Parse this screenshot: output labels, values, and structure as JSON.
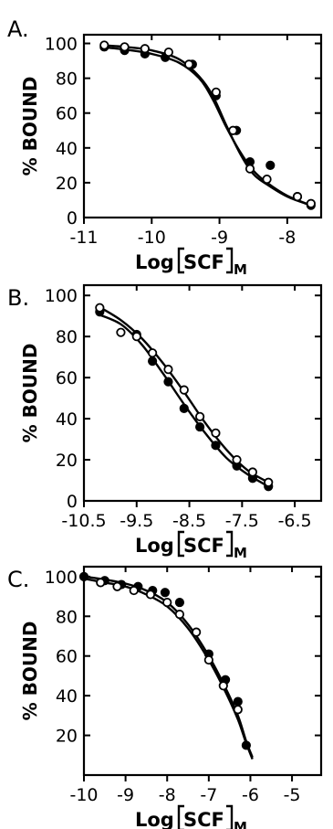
{
  "chart_data": [
    {
      "panel_label": "A.",
      "type": "line",
      "ylabel": "% BOUND",
      "xlabel_main": "Log",
      "xlabel_bracket": "SCF",
      "xlabel_sub": "M",
      "xlim": [
        -11,
        -7.5
      ],
      "ylim": [
        0,
        105
      ],
      "x_ticks": [
        -11,
        -10,
        -9,
        -8
      ],
      "x_tick_labels": [
        "-11",
        "-10",
        "-9",
        "-8"
      ],
      "y_ticks": [
        0,
        20,
        40,
        60,
        80,
        100
      ],
      "y_tick_labels": [
        "0",
        "20",
        "40",
        "60",
        "80",
        "100"
      ],
      "series": [
        {
          "marker": "filled",
          "points": [
            [
              -10.7,
              98
            ],
            [
              -10.4,
              96
            ],
            [
              -10.1,
              94
            ],
            [
              -9.8,
              92
            ],
            [
              -9.4,
              88
            ],
            [
              -9.05,
              70
            ],
            [
              -8.75,
              50
            ],
            [
              -8.55,
              32
            ],
            [
              -8.25,
              30
            ],
            [
              -7.85,
              12
            ],
            [
              -7.65,
              7
            ]
          ],
          "curve": [
            [
              -10.75,
              98
            ],
            [
              -10.4,
              96.5
            ],
            [
              -10.0,
              94
            ],
            [
              -9.6,
              89
            ],
            [
              -9.3,
              80
            ],
            [
              -9.1,
              68
            ],
            [
              -8.9,
              52
            ],
            [
              -8.7,
              38
            ],
            [
              -8.5,
              27
            ],
            [
              -8.3,
              20
            ],
            [
              -8.0,
              12.5
            ],
            [
              -7.65,
              7
            ]
          ]
        },
        {
          "marker": "open",
          "points": [
            [
              -10.7,
              99
            ],
            [
              -10.4,
              98
            ],
            [
              -10.1,
              97
            ],
            [
              -9.75,
              95
            ],
            [
              -9.45,
              88
            ],
            [
              -9.05,
              72
            ],
            [
              -8.8,
              50
            ],
            [
              -8.55,
              28
            ],
            [
              -8.3,
              22
            ],
            [
              -7.85,
              12
            ],
            [
              -7.65,
              8
            ]
          ],
          "curve": [
            [
              -10.75,
              99
            ],
            [
              -10.4,
              98
            ],
            [
              -10.0,
              96
            ],
            [
              -9.6,
              91
            ],
            [
              -9.3,
              81
            ],
            [
              -9.1,
              70
            ],
            [
              -8.9,
              53
            ],
            [
              -8.7,
              37
            ],
            [
              -8.5,
              25
            ],
            [
              -8.3,
              19
            ],
            [
              -8.0,
              12
            ],
            [
              -7.65,
              7
            ]
          ]
        }
      ]
    },
    {
      "panel_label": "B.",
      "type": "line",
      "ylabel": "% BOUND",
      "xlabel_main": "Log",
      "xlabel_bracket": "SCF",
      "xlabel_sub": "M",
      "xlim": [
        -10.5,
        -6.0
      ],
      "ylim": [
        0,
        105
      ],
      "x_ticks": [
        -10.5,
        -9.5,
        -8.5,
        -7.5,
        -6.5
      ],
      "x_tick_labels": [
        "-10.5",
        "-9.5",
        "-8.5",
        "-7.5",
        "-6.5"
      ],
      "y_ticks": [
        0,
        20,
        40,
        60,
        80,
        100
      ],
      "y_tick_labels": [
        "0",
        "20",
        "40",
        "60",
        "80",
        "100"
      ],
      "series": [
        {
          "marker": "filled",
          "points": [
            [
              -10.2,
              92
            ],
            [
              -9.5,
              81
            ],
            [
              -9.2,
              68
            ],
            [
              -8.9,
              58
            ],
            [
              -8.6,
              45
            ],
            [
              -8.3,
              36
            ],
            [
              -8.0,
              27
            ],
            [
              -7.6,
              17
            ],
            [
              -7.3,
              11
            ],
            [
              -7.0,
              7
            ]
          ],
          "curve": [
            [
              -10.25,
              91
            ],
            [
              -9.8,
              86
            ],
            [
              -9.4,
              76
            ],
            [
              -9.0,
              62
            ],
            [
              -8.6,
              47
            ],
            [
              -8.2,
              33
            ],
            [
              -7.8,
              21
            ],
            [
              -7.4,
              13
            ],
            [
              -7.0,
              7
            ]
          ]
        },
        {
          "marker": "open",
          "points": [
            [
              -10.2,
              94
            ],
            [
              -9.8,
              82
            ],
            [
              -9.5,
              80
            ],
            [
              -9.2,
              72
            ],
            [
              -8.9,
              64
            ],
            [
              -8.6,
              54
            ],
            [
              -8.3,
              41
            ],
            [
              -8.0,
              33
            ],
            [
              -7.6,
              20
            ],
            [
              -7.3,
              14
            ],
            [
              -7.0,
              9
            ]
          ],
          "curve": [
            [
              -10.25,
              95
            ],
            [
              -9.8,
              88
            ],
            [
              -9.4,
              79
            ],
            [
              -9.0,
              67
            ],
            [
              -8.6,
              53
            ],
            [
              -8.2,
              38
            ],
            [
              -7.8,
              25
            ],
            [
              -7.4,
              15
            ],
            [
              -7.0,
              9
            ]
          ]
        }
      ]
    },
    {
      "panel_label": "C.",
      "type": "line",
      "ylabel": "% BOUND",
      "xlabel_main": "Log",
      "xlabel_bracket": "SCF",
      "xlabel_sub": "M",
      "xlim": [
        -10,
        -4.3
      ],
      "ylim": [
        0,
        105
      ],
      "x_ticks": [
        -10,
        -9,
        -8,
        -7,
        -6,
        -5
      ],
      "x_tick_labels": [
        "-10",
        "-9",
        "-8",
        "-7",
        "-6",
        "-5"
      ],
      "y_ticks": [
        20,
        40,
        60,
        80,
        100
      ],
      "y_tick_labels": [
        "20",
        "40",
        "60",
        "80",
        "100"
      ],
      "series": [
        {
          "marker": "filled",
          "points": [
            [
              -10,
              100
            ],
            [
              -9.5,
              98
            ],
            [
              -9.1,
              96
            ],
            [
              -8.7,
              95
            ],
            [
              -8.35,
              93
            ],
            [
              -8.05,
              92
            ],
            [
              -7.7,
              87
            ],
            [
              -7.0,
              61
            ],
            [
              -6.6,
              48
            ],
            [
              -6.3,
              37
            ],
            [
              -6.1,
              15
            ]
          ],
          "curve": [
            [
              -10.0,
              100
            ],
            [
              -9.5,
              98.5
            ],
            [
              -9.0,
              96.5
            ],
            [
              -8.5,
              93
            ],
            [
              -8.0,
              87
            ],
            [
              -7.5,
              76
            ],
            [
              -7.0,
              60
            ],
            [
              -6.6,
              44
            ],
            [
              -6.3,
              30
            ],
            [
              -6.1,
              17
            ],
            [
              -5.95,
              9
            ]
          ]
        },
        {
          "marker": "open",
          "points": [
            [
              -9.6,
              97
            ],
            [
              -9.2,
              95
            ],
            [
              -8.8,
              93
            ],
            [
              -8.4,
              91
            ],
            [
              -8.0,
              87
            ],
            [
              -7.7,
              81
            ],
            [
              -7.3,
              72
            ],
            [
              -7.0,
              58
            ],
            [
              -6.65,
              45
            ],
            [
              -6.3,
              33
            ]
          ],
          "curve": [
            [
              -10.0,
              99
            ],
            [
              -9.5,
              97
            ],
            [
              -9.0,
              95
            ],
            [
              -8.5,
              91
            ],
            [
              -8.0,
              85
            ],
            [
              -7.5,
              74
            ],
            [
              -7.0,
              58
            ],
            [
              -6.6,
              42
            ],
            [
              -6.3,
              28
            ],
            [
              -6.1,
              16
            ],
            [
              -5.95,
              8
            ]
          ]
        }
      ]
    }
  ]
}
